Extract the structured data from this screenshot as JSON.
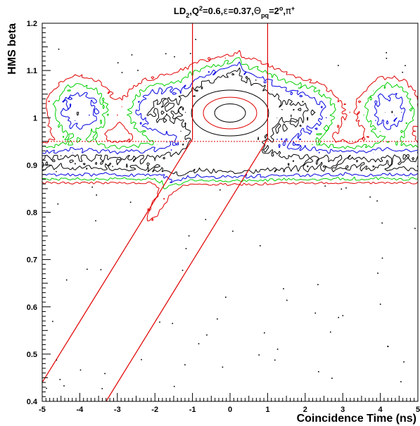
{
  "chart_data": {
    "type": "scatter",
    "title": {
      "parts": [
        {
          "t": "LD"
        },
        {
          "t": "2",
          "sub": true
        },
        {
          "t": ",Q"
        },
        {
          "t": "2",
          "sup": true
        },
        {
          "t": "=0.6,"
        },
        {
          "t": "ε",
          "symbol": true
        },
        {
          "t": "=0.37,"
        },
        {
          "t": "Θ",
          "symbol": true
        },
        {
          "t": "pq",
          "sub": true
        },
        {
          "t": "=2"
        },
        {
          "t": "o",
          "sup": true
        },
        {
          "t": ","
        },
        {
          "t": "π",
          "symbol": true
        },
        {
          "t": "+",
          "sup": true
        }
      ]
    },
    "xlabel": "Coincidence Time (ns)",
    "ylabel": "HMS beta",
    "xlim": [
      -5,
      5
    ],
    "ylim": [
      0.4,
      1.2
    ],
    "xticks": [
      -5,
      -4,
      -3,
      -2,
      -1,
      0,
      1,
      2,
      3,
      4,
      5
    ],
    "yticks": [
      0.4,
      0.5,
      0.6,
      0.7,
      0.8,
      0.9,
      1,
      1.1,
      1.2
    ],
    "xtick_labels": [
      "-5",
      "-4",
      "-3",
      "-2",
      "-1",
      "0",
      "1",
      "2",
      "3",
      "4",
      "5"
    ],
    "ytick_labels": [
      "0.4",
      "0.5",
      "0.6",
      "0.7",
      "0.8",
      "0.9",
      "1",
      "1.1",
      "1.2"
    ],
    "grid": false,
    "contour_colors": [
      "#e00000",
      "#00d000",
      "#0000e0",
      "#000000"
    ],
    "cut_color": "#e00000",
    "cuts": {
      "beta_line": {
        "y": 0.95,
        "style": "dotted"
      },
      "left_cut": [
        [
          -5.0,
          0.44
        ],
        [
          -1.0,
          0.955
        ],
        [
          -1.0,
          1.2
        ]
      ],
      "right_cut": [
        [
          -3.3,
          0.4
        ],
        [
          1.0,
          0.955
        ],
        [
          1.0,
          1.2
        ]
      ]
    },
    "proton_band": {
      "x_range": [
        -5,
        5
      ],
      "beta_center": 0.903,
      "beta_halfwidth": 0.035,
      "slope_per_ns": 0.0
    },
    "peaks": [
      {
        "x": -4.0,
        "beta": 1.015,
        "sx": 0.55,
        "sy": 0.045,
        "strength": 1.0
      },
      {
        "x": -2.0,
        "beta": 1.015,
        "sx": 0.5,
        "sy": 0.04,
        "strength": 1.0
      },
      {
        "x": 0.0,
        "beta": 1.01,
        "sx": 0.85,
        "sy": 0.055,
        "strength": 3.0
      },
      {
        "x": 2.0,
        "beta": 1.01,
        "sx": 0.6,
        "sy": 0.04,
        "strength": 1.0
      },
      {
        "x": 4.25,
        "beta": 1.015,
        "sx": 0.5,
        "sy": 0.045,
        "strength": 1.0
      }
    ]
  }
}
